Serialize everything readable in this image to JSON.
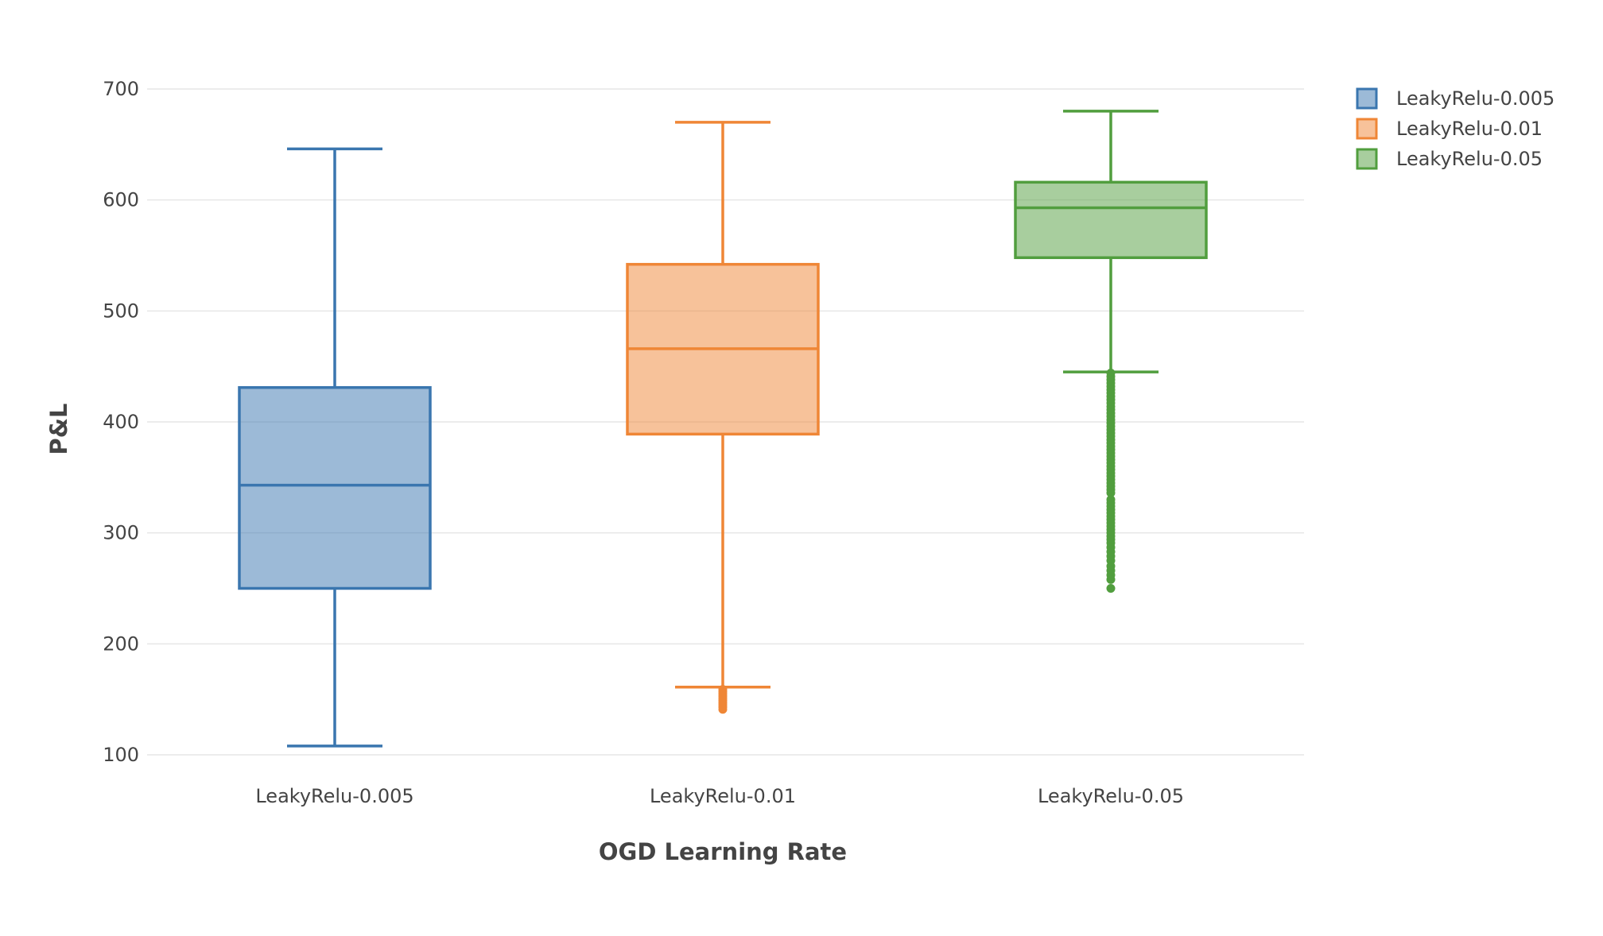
{
  "chart_data": {
    "type": "box",
    "xlabel": "OGD Learning Rate",
    "ylabel": "P&L",
    "ylim": [
      100,
      700
    ],
    "yticks": [
      100,
      200,
      300,
      400,
      500,
      600,
      700
    ],
    "grid": true,
    "legend_position": "top-right",
    "categories": [
      "LeakyRelu-0.005",
      "LeakyRelu-0.01",
      "LeakyRelu-0.05"
    ],
    "series": [
      {
        "name": "LeakyRelu-0.005",
        "color": "#3a76af",
        "fill": "rgba(58,118,175,0.5)",
        "whisker_low": 108,
        "q1": 250,
        "median": 343,
        "q3": 431,
        "whisker_high": 646,
        "outliers": []
      },
      {
        "name": "LeakyRelu-0.01",
        "color": "#ef8636",
        "fill": "rgba(239,134,54,0.5)",
        "whisker_low": 161,
        "q1": 389,
        "median": 466,
        "q3": 542,
        "whisker_high": 670,
        "outliers": [
          159,
          157,
          155,
          153,
          151,
          149,
          147,
          145,
          143,
          141
        ]
      },
      {
        "name": "LeakyRelu-0.05",
        "color": "#519e3e",
        "fill": "rgba(81,158,62,0.5)",
        "whisker_low": 445,
        "q1": 548,
        "median": 593,
        "q3": 616,
        "whisker_high": 680,
        "outliers": [
          444,
          441,
          438,
          435,
          432,
          429,
          426,
          423,
          420,
          417,
          414,
          411,
          408,
          405,
          402,
          399,
          396,
          393,
          390,
          387,
          384,
          381,
          378,
          375,
          372,
          369,
          366,
          363,
          360,
          357,
          354,
          351,
          348,
          345,
          342,
          339,
          336,
          330,
          327,
          324,
          321,
          318,
          315,
          312,
          309,
          306,
          303,
          300,
          297,
          294,
          291,
          287,
          283,
          279,
          275,
          270,
          266,
          262,
          258,
          250
        ]
      }
    ]
  }
}
